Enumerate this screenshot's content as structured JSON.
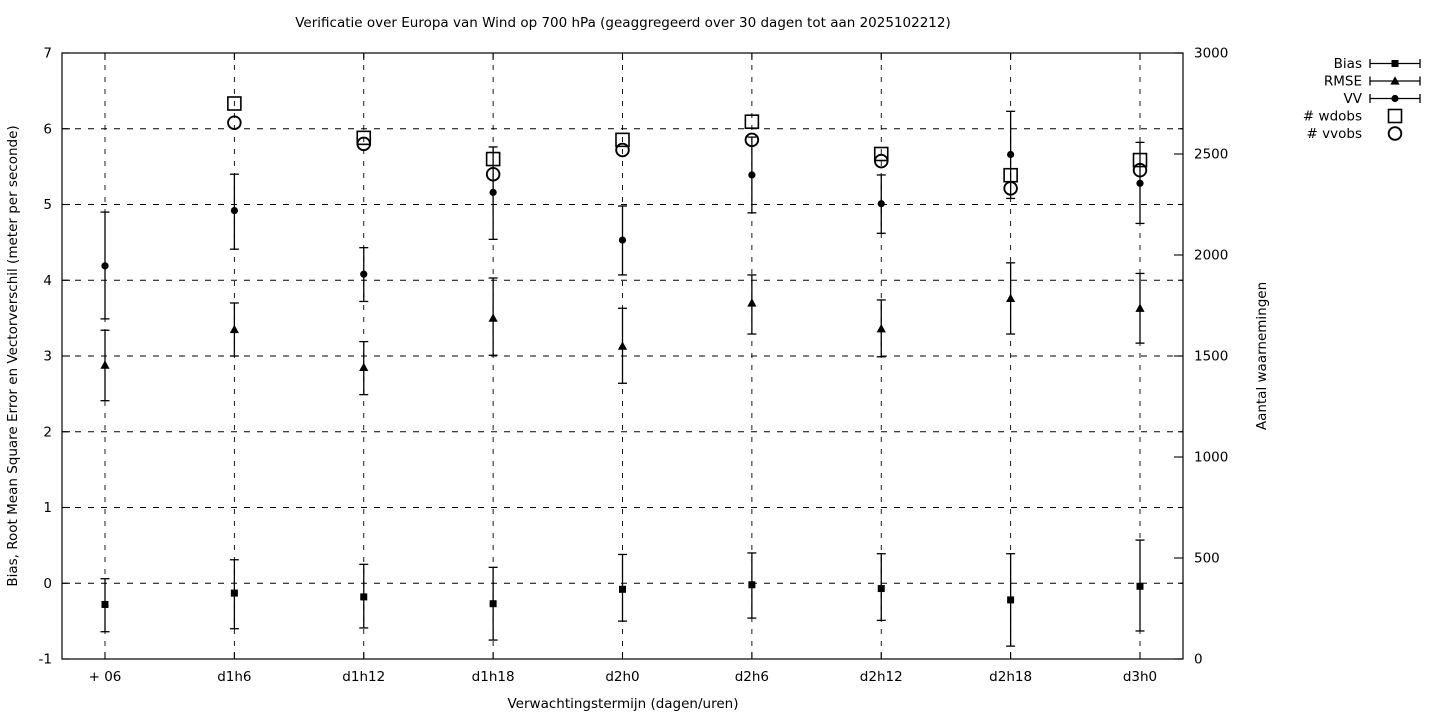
{
  "colors": {
    "foreground": "#000000",
    "background": "#ffffff"
  },
  "chart_data": {
    "type": "scatter",
    "title": "Verificatie over Europa van Wind op 700 hPa (geaggregeerd over 30 dagen tot aan 2025102212)",
    "xlabel": "Verwachtingstermijn (dagen/uren)",
    "ylabel_left": "Bias, Root Mean Square Error en Vectorverschil (meter per seconde)",
    "ylabel_right": "Aantal waarnemingen",
    "y_left_range": [
      -1,
      7
    ],
    "y_left_ticks": [
      -1,
      0,
      1,
      2,
      3,
      4,
      5,
      6,
      7
    ],
    "y_right_range": [
      0,
      3000
    ],
    "y_right_ticks": [
      0,
      500,
      1000,
      1500,
      2000,
      2500,
      3000
    ],
    "grid": "dashed",
    "legend_position": "outside-top-right",
    "categories": [
      "+ 06",
      "d1h6",
      "d1h12",
      "d1h18",
      "d2h0",
      "d2h6",
      "d2h12",
      "d2h18",
      "d3h0"
    ],
    "series": [
      {
        "name": "Bias",
        "marker": "filled-square",
        "axis": "left",
        "errorbars": true,
        "values": [
          -0.28,
          -0.13,
          -0.18,
          -0.27,
          -0.08,
          -0.02,
          -0.07,
          -0.22,
          -0.04
        ],
        "err_low": [
          -0.64,
          -0.6,
          -0.59,
          -0.75,
          -0.5,
          -0.46,
          -0.49,
          -0.83,
          -0.63
        ],
        "err_high": [
          0.06,
          0.31,
          0.25,
          0.21,
          0.38,
          0.4,
          0.39,
          0.39,
          0.57
        ]
      },
      {
        "name": "RMSE",
        "marker": "filled-triangle",
        "axis": "left",
        "errorbars": true,
        "values": [
          2.88,
          3.35,
          2.85,
          3.5,
          3.13,
          3.7,
          3.36,
          3.76,
          3.63
        ],
        "err_low": [
          2.41,
          3.0,
          2.49,
          3.01,
          2.64,
          3.29,
          2.99,
          3.29,
          3.17
        ],
        "err_high": [
          3.34,
          3.7,
          3.19,
          4.03,
          3.63,
          4.07,
          3.74,
          4.23,
          4.09
        ]
      },
      {
        "name": "VV",
        "marker": "filled-circle",
        "axis": "left",
        "errorbars": true,
        "values": [
          4.19,
          4.92,
          4.08,
          5.16,
          4.53,
          5.39,
          5.01,
          5.66,
          5.28
        ],
        "err_low": [
          3.49,
          4.41,
          3.72,
          4.54,
          4.07,
          4.89,
          4.62,
          5.08,
          4.75
        ],
        "err_high": [
          4.9,
          5.4,
          4.43,
          5.76,
          4.98,
          5.89,
          5.39,
          6.23,
          5.82
        ]
      },
      {
        "name": "# wdobs",
        "marker": "open-square",
        "axis": "right",
        "errorbars": false,
        "values": [
          null,
          2750,
          2580,
          2475,
          2570,
          2660,
          2500,
          2395,
          2470
        ]
      },
      {
        "name": "# vvobs",
        "marker": "open-circle",
        "axis": "right",
        "errorbars": false,
        "values": [
          null,
          2655,
          2550,
          2400,
          2520,
          2570,
          2465,
          2330,
          2420
        ]
      }
    ]
  }
}
